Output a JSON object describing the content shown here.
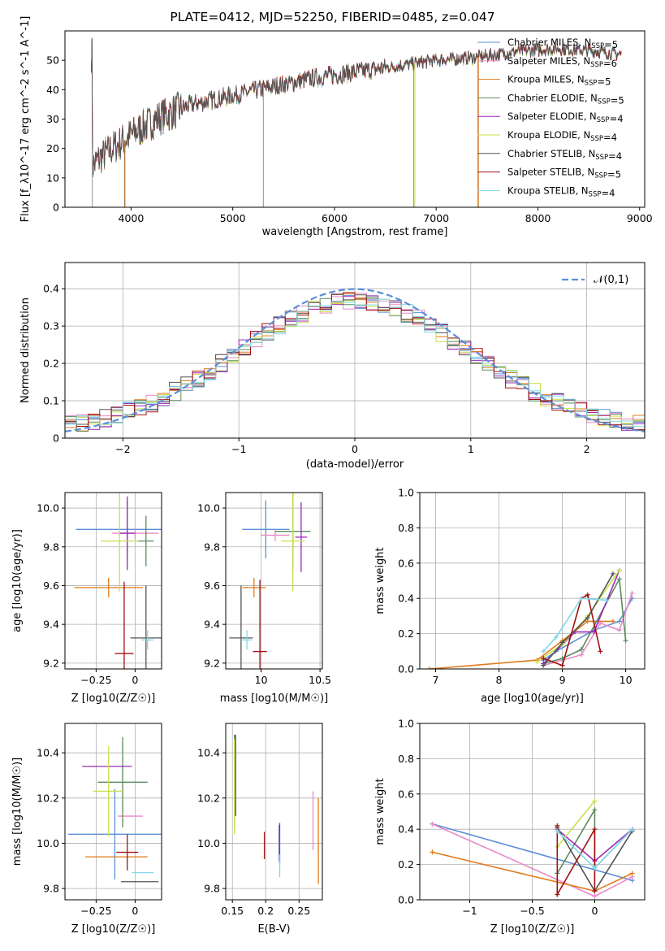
{
  "figure": {
    "title": "PLATE=0412, MJD=52250, FIBERID=0485, z=0.047"
  },
  "colors": [
    "#5b8fd9",
    "#e88ac6",
    "#e07b1c",
    "#5b8a5b",
    "#9b28b8",
    "#c9e04a",
    "#555555",
    "#a01010",
    "#80d8e8"
  ],
  "chart_data": [
    {
      "type": "line",
      "id": "spectrum",
      "xlabel": "wavelength [Angstrom, rest frame]",
      "ylabel": "Flux [f_λ10^-17 erg cm^-2 s^-1 A^-1]",
      "xlim": [
        3350,
        9050
      ],
      "ylim": [
        0,
        60
      ],
      "xticks": [
        4000,
        5000,
        6000,
        7000,
        8000,
        9000
      ],
      "yticks": [
        0,
        10,
        20,
        30,
        40,
        50
      ],
      "data_range": [
        3610,
        8820
      ],
      "continuum_x": [
        3620,
        3700,
        3900,
        4100,
        4300,
        4600,
        5000,
        5400,
        5800,
        6200,
        6600,
        7000,
        7400,
        7800,
        8200,
        8600,
        8820
      ],
      "continuum_y": [
        14,
        17,
        22,
        27,
        31,
        35,
        38,
        41,
        44,
        46,
        48,
        50,
        51,
        53,
        54,
        53,
        52
      ],
      "legend": [
        {
          "label": "Chabrier MILES, N_SSP=5"
        },
        {
          "label": "Salpeter MILES, N_SSP=6"
        },
        {
          "label": "Kroupa MILES, N_SSP=5"
        },
        {
          "label": "Chabrier ELODIE, N_SSP=5"
        },
        {
          "label": "Salpeter ELODIE, N_SSP=4"
        },
        {
          "label": "Kroupa ELODIE, N_SSP=4"
        },
        {
          "label": "Chabrier STELIB, N_SSP=4"
        },
        {
          "label": "Salpeter STELIB, N_SSP=5"
        },
        {
          "label": "Kroupa STELIB, N_SSP=4"
        }
      ]
    },
    {
      "type": "histogram",
      "id": "residuals",
      "xlabel": "(data-model)/error",
      "ylabel": "Normed distribution",
      "xlim": [
        -2.5,
        2.5
      ],
      "ylim": [
        0,
        0.47
      ],
      "xticks": [
        -2,
        -1,
        0,
        1,
        2
      ],
      "yticks": [
        0.0,
        0.1,
        0.2,
        0.3,
        0.4
      ],
      "bin_width": 0.1,
      "legend": "𝒩(0,1)"
    },
    {
      "type": "scatter",
      "id": "age_vs_Z",
      "xlabel": "Z [log10(Z/Z☉)]",
      "ylabel": "age  [log10(age/yr)]",
      "xlim": [
        -0.45,
        0.17
      ],
      "ylim": [
        9.17,
        10.08
      ],
      "xticks": [
        -0.25,
        0.0
      ],
      "yticks": [
        9.2,
        9.4,
        9.6,
        9.8,
        10.0
      ],
      "points": [
        {
          "x": -0.05,
          "y": 9.89,
          "xerr": 0.33,
          "yerr": 0.15
        },
        {
          "x": 0.0,
          "y": 9.87,
          "xerr": 0.15,
          "yerr": 0.03
        },
        {
          "x": -0.17,
          "y": 9.59,
          "xerr": 0.22,
          "yerr": 0.05
        },
        {
          "x": 0.07,
          "y": 9.83,
          "xerr": 0.05,
          "yerr": 0.13
        },
        {
          "x": -0.05,
          "y": 9.87,
          "xerr": 0.05,
          "yerr": 0.19
        },
        {
          "x": -0.1,
          "y": 9.83,
          "xerr": 0.12,
          "yerr": 0.26
        },
        {
          "x": 0.07,
          "y": 9.33,
          "xerr": 0.1,
          "yerr": 0.27
        },
        {
          "x": -0.07,
          "y": 9.25,
          "xerr": 0.06,
          "yerr": 0.37
        },
        {
          "x": 0.08,
          "y": 9.32,
          "xerr": 0.04,
          "yerr": 0.05
        }
      ]
    },
    {
      "type": "scatter",
      "id": "age_vs_mass",
      "xlabel": "mass [log10(M/M☉)]",
      "ylabel": "",
      "xlim": [
        9.7,
        10.52
      ],
      "ylim": [
        9.17,
        10.08
      ],
      "xticks": [
        10.0,
        10.5
      ],
      "yticks": [
        9.2,
        9.4,
        9.6,
        9.8,
        10.0
      ],
      "points": [
        {
          "x": 10.04,
          "y": 9.89,
          "xerr": 0.2,
          "yerr": 0.15
        },
        {
          "x": 10.12,
          "y": 9.86,
          "xerr": 0.12,
          "yerr": 0.03
        },
        {
          "x": 9.94,
          "y": 9.59,
          "xerr": 0.1,
          "yerr": 0.05
        },
        {
          "x": 10.27,
          "y": 9.88,
          "xerr": 0.15,
          "yerr": 0.2
        },
        {
          "x": 10.34,
          "y": 9.85,
          "xerr": 0.05,
          "yerr": 0.18
        },
        {
          "x": 10.27,
          "y": 9.83,
          "xerr": 0.1,
          "yerr": 0.26
        },
        {
          "x": 9.83,
          "y": 9.33,
          "xerr": 0.1,
          "yerr": 0.27
        },
        {
          "x": 9.99,
          "y": 9.26,
          "xerr": 0.06,
          "yerr": 0.37
        },
        {
          "x": 9.88,
          "y": 9.32,
          "xerr": 0.04,
          "yerr": 0.05
        }
      ]
    },
    {
      "type": "line",
      "id": "weight_vs_age",
      "xlabel": "age  [log10(age/yr)]",
      "ylabel": "mass weight",
      "xlim": [
        6.75,
        10.3
      ],
      "ylim": [
        0,
        1
      ],
      "xticks": [
        7,
        8,
        9,
        10
      ],
      "yticks": [
        0.0,
        0.2,
        0.4,
        0.6,
        0.8,
        1.0
      ],
      "series": [
        {
          "x": [
            8.7,
            8.9,
            9.5,
            9.9,
            10.1
          ],
          "y": [
            0.05,
            0.1,
            0.22,
            0.27,
            0.4
          ]
        },
        {
          "x": [
            8.7,
            9.3,
            9.6,
            9.9,
            10.1
          ],
          "y": [
            0.02,
            0.08,
            0.26,
            0.22,
            0.43
          ]
        },
        {
          "x": [
            6.9,
            8.6,
            9.0,
            9.4,
            9.8
          ],
          "y": [
            0.0,
            0.05,
            0.16,
            0.27,
            0.27
          ]
        },
        {
          "x": [
            8.7,
            9.0,
            9.3,
            9.9,
            10.0
          ],
          "y": [
            0.03,
            0.06,
            0.11,
            0.51,
            0.16
          ]
        },
        {
          "x": [
            8.7,
            9.2,
            9.5,
            9.9
          ],
          "y": [
            0.03,
            0.21,
            0.21,
            0.56
          ]
        },
        {
          "x": [
            8.6,
            9.0,
            9.4,
            9.9
          ],
          "y": [
            0.04,
            0.14,
            0.3,
            0.56
          ]
        },
        {
          "x": [
            8.7,
            9.0,
            9.4,
            9.8
          ],
          "y": [
            0.02,
            0.15,
            0.29,
            0.54
          ]
        },
        {
          "x": [
            8.7,
            9.0,
            9.3,
            9.4,
            9.6
          ],
          "y": [
            0.06,
            0.02,
            0.4,
            0.42,
            0.1
          ]
        },
        {
          "x": [
            8.7,
            8.9,
            9.3,
            9.7
          ],
          "y": [
            0.1,
            0.18,
            0.4,
            0.39
          ]
        }
      ]
    },
    {
      "type": "scatter",
      "id": "mass_vs_Z",
      "xlabel": "Z [log10(Z/Z☉)]",
      "ylabel": "mass [log10(M/M☉)]",
      "xlim": [
        -0.45,
        0.17
      ],
      "ylim": [
        9.75,
        10.53
      ],
      "xticks": [
        -0.25,
        0.0
      ],
      "yticks": [
        9.8,
        10.0,
        10.2,
        10.4
      ],
      "points": [
        {
          "x": -0.13,
          "y": 10.04,
          "xerr": 0.3,
          "yerr": 0.2
        },
        {
          "x": -0.03,
          "y": 10.12,
          "xerr": 0.08,
          "yerr": 0.0
        },
        {
          "x": -0.12,
          "y": 9.94,
          "xerr": 0.2,
          "yerr": 0.0
        },
        {
          "x": -0.08,
          "y": 10.27,
          "xerr": 0.16,
          "yerr": 0.2
        },
        {
          "x": -0.18,
          "y": 10.34,
          "xerr": 0.16,
          "yerr": 0.0
        },
        {
          "x": -0.17,
          "y": 10.23,
          "xerr": 0.1,
          "yerr": 0.2
        },
        {
          "x": 0.03,
          "y": 9.83,
          "xerr": 0.12,
          "yerr": 0.0
        },
        {
          "x": -0.05,
          "y": 9.96,
          "xerr": 0.07,
          "yerr": 0.08
        },
        {
          "x": 0.05,
          "y": 9.87,
          "xerr": 0.07,
          "yerr": 0.0
        }
      ]
    },
    {
      "type": "scatter",
      "id": "mass_vs_ebv",
      "xlabel": "E(B-V)",
      "ylabel": "",
      "xlim": [
        0.14,
        0.285
      ],
      "ylim": [
        9.75,
        10.53
      ],
      "xticks": [
        0.15,
        0.2,
        0.25
      ],
      "yticks": [
        9.8,
        10.0,
        10.2,
        10.4
      ],
      "points": [
        {
          "x": 0.22,
          "y": 10.0,
          "xerr": 0,
          "yerr": 0.08
        },
        {
          "x": 0.271,
          "y": 10.1,
          "xerr": 0,
          "yerr": 0.13
        },
        {
          "x": 0.279,
          "y": 10.01,
          "xerr": 0,
          "yerr": 0.19
        },
        {
          "x": 0.153,
          "y": 10.27,
          "xerr": 0,
          "yerr": 0.21
        },
        {
          "x": 0.221,
          "y": 10.0,
          "xerr": 0,
          "yerr": 0.09
        },
        {
          "x": 0.153,
          "y": 10.25,
          "xerr": 0,
          "yerr": 0.21
        },
        {
          "x": 0.155,
          "y": 10.3,
          "xerr": 0,
          "yerr": 0.18
        },
        {
          "x": 0.198,
          "y": 9.99,
          "xerr": 0,
          "yerr": 0.06
        },
        {
          "x": 0.221,
          "y": 9.9,
          "xerr": 0,
          "yerr": 0.05
        }
      ]
    },
    {
      "type": "line",
      "id": "weight_vs_Z",
      "xlabel": "Z [log10(Z/Z☉)]",
      "ylabel": "mass weight",
      "xlim": [
        -1.4,
        0.4
      ],
      "ylim": [
        0,
        1
      ],
      "xticks": [
        -1.0,
        -0.5,
        0.0
      ],
      "yticks": [
        0.0,
        0.2,
        0.4,
        0.6,
        0.8,
        1.0
      ],
      "series": [
        {
          "x": [
            -1.3,
            0.3
          ],
          "y": [
            0.43,
            0.11
          ]
        },
        {
          "x": [
            -1.3,
            0.0,
            0.3
          ],
          "y": [
            0.43,
            0.02,
            0.13
          ]
        },
        {
          "x": [
            -1.3,
            0.0,
            0.3
          ],
          "y": [
            0.27,
            0.05,
            0.15
          ]
        },
        {
          "x": [
            -0.3,
            0.0,
            0.0,
            0.3
          ],
          "y": [
            0.15,
            0.51,
            0.18,
            0.4
          ]
        },
        {
          "x": [
            -0.3,
            0.0,
            0.3
          ],
          "y": [
            0.4,
            0.22,
            0.4
          ]
        },
        {
          "x": [
            -0.3,
            0.0
          ],
          "y": [
            0.3,
            0.56
          ]
        },
        {
          "x": [
            -0.3,
            0.0,
            0.3
          ],
          "y": [
            0.41,
            0.05,
            0.39
          ]
        },
        {
          "x": [
            -0.3,
            -0.3,
            0.0,
            0.0
          ],
          "y": [
            0.42,
            0.03,
            0.4,
            0.05
          ]
        },
        {
          "x": [
            -0.3,
            0.0,
            0.3
          ],
          "y": [
            0.39,
            0.18,
            0.4
          ]
        }
      ]
    }
  ]
}
